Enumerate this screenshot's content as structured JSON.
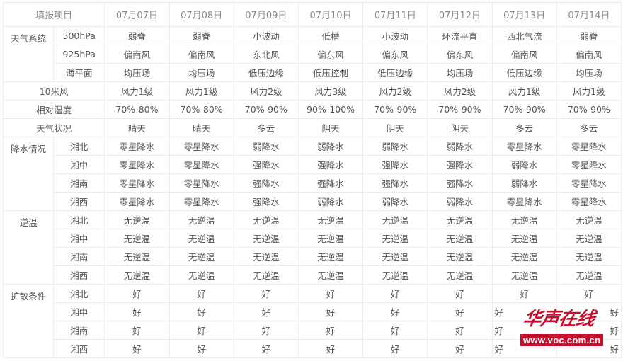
{
  "header": {
    "label": "填报项目",
    "dates": [
      "07月07日",
      "07月08日",
      "07月09日",
      "07月10日",
      "07月11日",
      "07月12日",
      "07月13日",
      "07月14日"
    ]
  },
  "weather_system": {
    "label": "天气系统",
    "rows": [
      {
        "sub": "500hPa",
        "values": [
          "弱脊",
          "弱脊",
          "小波动",
          "低槽",
          "小波动",
          "环流平直",
          "西北气流",
          "弱脊"
        ]
      },
      {
        "sub": "925hPa",
        "values": [
          "偏南风",
          "偏南风",
          "东北风",
          "偏东风",
          "偏东风",
          "偏东风",
          "偏南风",
          "偏南风"
        ]
      },
      {
        "sub": "海平面",
        "values": [
          "均压场",
          "均压场",
          "低压边缘",
          "低压控制",
          "低压边缘",
          "均压场",
          "低压边缘",
          "均压场"
        ]
      }
    ]
  },
  "wind": {
    "label": "10米风",
    "values": [
      "风力1级",
      "风力1级",
      "风力2级",
      "风力3级",
      "风力2级",
      "风力2级",
      "风力1级",
      "风力1级"
    ]
  },
  "humidity": {
    "label": "相对湿度",
    "values": [
      "70%-80%",
      "70%-80%",
      "70%-90%",
      "90%-100%",
      "70%-90%",
      "70%-90%",
      "70%-90%",
      "70%-90%"
    ]
  },
  "condition": {
    "label": "天气状况",
    "values": [
      "晴天",
      "晴天",
      "多云",
      "阴天",
      "阴天",
      "阴天",
      "多云",
      "多云"
    ]
  },
  "precipitation": {
    "label": "降水情况",
    "rows": [
      {
        "sub": "湘北",
        "values": [
          "零星降水",
          "零星降水",
          "弱降水",
          "弱降水",
          "弱降水",
          "弱降水",
          "零星降水",
          "零星降水"
        ]
      },
      {
        "sub": "湘中",
        "values": [
          "零星降水",
          "零星降水",
          "强降水",
          "强降水",
          "强降水",
          "强降水",
          "弱降水",
          "零星降水"
        ]
      },
      {
        "sub": "湘南",
        "values": [
          "零星降水",
          "零星降水",
          "强降水",
          "强降水",
          "强降水",
          "强降水",
          "弱降水",
          "零星降水"
        ]
      },
      {
        "sub": "湘西",
        "values": [
          "零星降水",
          "零星降水",
          "强降水",
          "弱降水",
          "弱降水",
          "弱降水",
          "零星降水",
          "零星降水"
        ]
      }
    ]
  },
  "inversion": {
    "label": "逆温",
    "rows": [
      {
        "sub": "湘北",
        "values": [
          "无逆温",
          "无逆温",
          "无逆温",
          "无逆温",
          "无逆温",
          "无逆温",
          "无逆温",
          "无逆温"
        ]
      },
      {
        "sub": "湘中",
        "values": [
          "无逆温",
          "无逆温",
          "无逆温",
          "无逆温",
          "无逆温",
          "无逆温",
          "无逆温",
          "无逆温"
        ]
      },
      {
        "sub": "湘南",
        "values": [
          "无逆温",
          "无逆温",
          "无逆温",
          "无逆温",
          "无逆温",
          "无逆温",
          "无逆温",
          "无逆温"
        ]
      },
      {
        "sub": "湘西",
        "values": [
          "无逆温",
          "无逆温",
          "无逆温",
          "无逆温",
          "无逆温",
          "无逆温",
          "无逆温",
          "无逆温"
        ]
      }
    ]
  },
  "diffusion": {
    "label": "扩散条件",
    "rows": [
      {
        "sub": "湘北",
        "values": [
          "好",
          "好",
          "好",
          "好",
          "好",
          "好",
          "好",
          "好"
        ]
      },
      {
        "sub": "湘中",
        "values": [
          "好",
          "好",
          "好",
          "好",
          "好",
          "好",
          "好",
          "好"
        ]
      },
      {
        "sub": "湘南",
        "values": [
          "好",
          "好",
          "好",
          "好",
          "好",
          "好",
          "好",
          "好"
        ]
      },
      {
        "sub": "湘西",
        "values": [
          "好",
          "好",
          "好",
          "好",
          "好",
          "好",
          "好",
          "好"
        ]
      }
    ]
  },
  "watermark": {
    "logo": "华声在线",
    "url": "www.voc.com.cn",
    "color": "#c8102e"
  }
}
